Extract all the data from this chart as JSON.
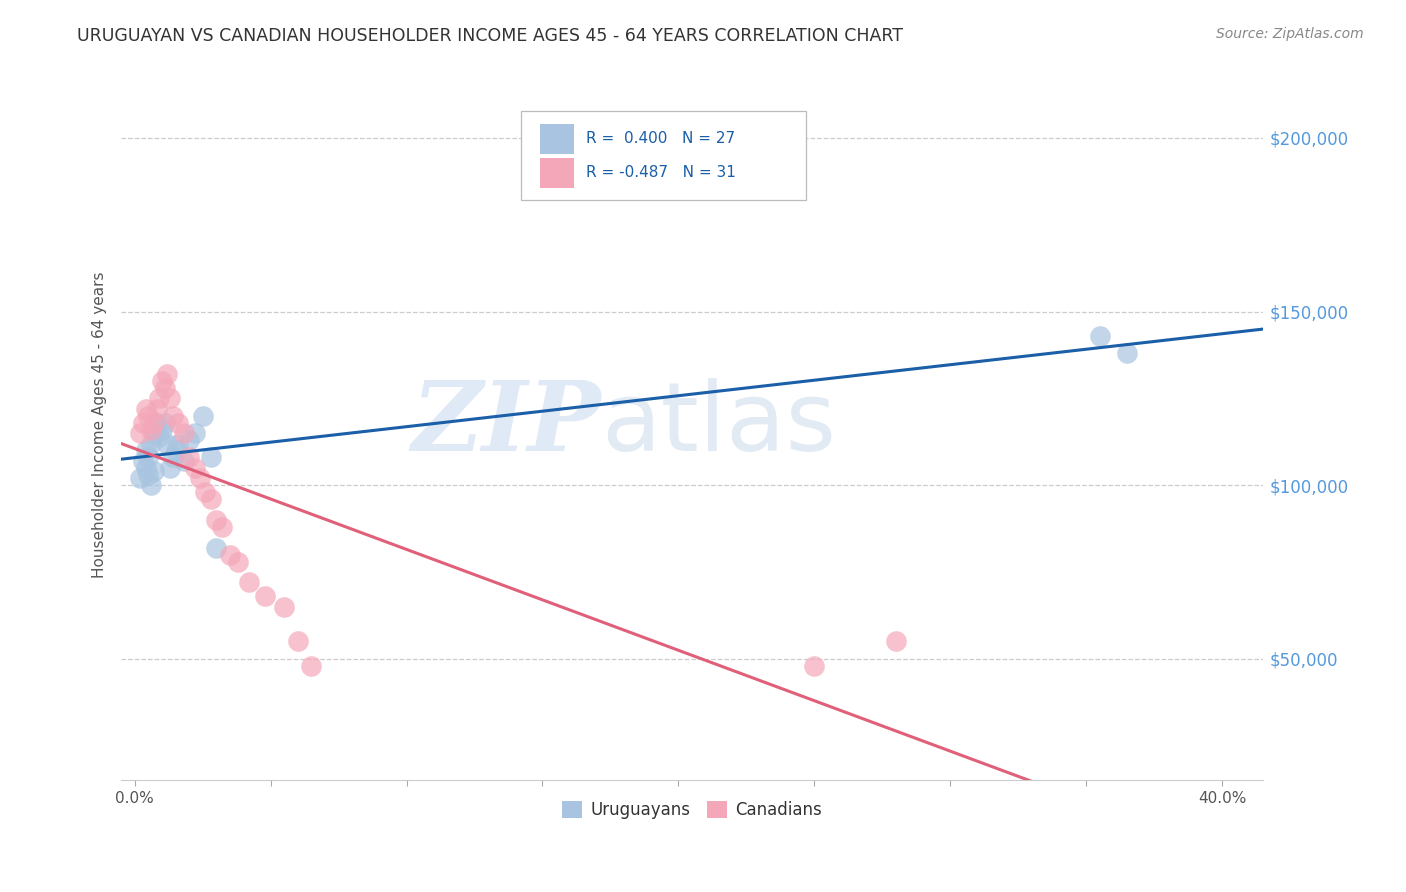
{
  "title": "URUGUAYAN VS CANADIAN HOUSEHOLDER INCOME AGES 45 - 64 YEARS CORRELATION CHART",
  "source": "Source: ZipAtlas.com",
  "ylabel": "Householder Income Ages 45 - 64 years",
  "ytick_labels": [
    "$50,000",
    "$100,000",
    "$150,000",
    "$200,000"
  ],
  "ytick_vals": [
    50000,
    100000,
    150000,
    200000
  ],
  "ylim": [
    15000,
    220000
  ],
  "xlim": [
    -0.005,
    0.415
  ],
  "uruguayan_color": "#a8c4e0",
  "canadian_color": "#f4a7b9",
  "uruguayan_line_color": "#1a5fa8",
  "canadian_line_color": "#e0607a",
  "watermark_zip": "ZIP",
  "watermark_atlas": "atlas",
  "background_color": "#ffffff",
  "grid_color": "#cccccc",
  "uruguayan_points_x": [
    0.002,
    0.003,
    0.004,
    0.004,
    0.005,
    0.005,
    0.006,
    0.006,
    0.007,
    0.007,
    0.008,
    0.009,
    0.01,
    0.011,
    0.012,
    0.013,
    0.014,
    0.015,
    0.016,
    0.018,
    0.02,
    0.022,
    0.025,
    0.028,
    0.03,
    0.355,
    0.365
  ],
  "uruguayan_points_y": [
    102000,
    107000,
    110000,
    105000,
    108000,
    103000,
    112000,
    100000,
    115000,
    104000,
    118000,
    114000,
    116000,
    118000,
    112000,
    105000,
    108000,
    110000,
    112000,
    107000,
    113000,
    115000,
    120000,
    108000,
    82000,
    143000,
    138000
  ],
  "canadian_points_x": [
    0.002,
    0.003,
    0.004,
    0.005,
    0.006,
    0.007,
    0.008,
    0.009,
    0.01,
    0.011,
    0.012,
    0.013,
    0.014,
    0.016,
    0.018,
    0.02,
    0.022,
    0.024,
    0.026,
    0.028,
    0.03,
    0.032,
    0.035,
    0.038,
    0.042,
    0.048,
    0.055,
    0.06,
    0.065,
    0.25,
    0.28
  ],
  "canadian_points_y": [
    115000,
    118000,
    122000,
    120000,
    116000,
    118000,
    122000,
    125000,
    130000,
    128000,
    132000,
    125000,
    120000,
    118000,
    115000,
    108000,
    105000,
    102000,
    98000,
    96000,
    90000,
    88000,
    80000,
    78000,
    72000,
    68000,
    65000,
    55000,
    48000,
    48000,
    55000
  ]
}
